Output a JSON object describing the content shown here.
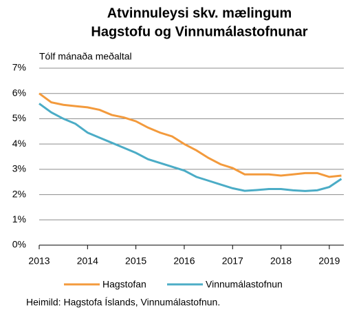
{
  "chart_data": {
    "type": "line",
    "title": [
      "Atvinnuleysi skv. mælingum",
      "Hagstofu og Vinnumálastofnunar"
    ],
    "subtitle": "Tólf mánaða meðaltal",
    "source": "Heimild: Hagstofa Íslands, Vinnumálastofnun.",
    "x": [
      2013,
      2013.25,
      2013.5,
      2013.75,
      2014,
      2014.25,
      2014.5,
      2014.75,
      2015,
      2015.25,
      2015.5,
      2015.75,
      2016,
      2016.25,
      2016.5,
      2016.75,
      2017,
      2017.25,
      2017.5,
      2017.75,
      2018,
      2018.25,
      2018.5,
      2018.75,
      2019,
      2019.25
    ],
    "series": [
      {
        "name": "Hagstofan",
        "color": "#f39a3c",
        "values": [
          6.0,
          5.65,
          5.55,
          5.5,
          5.45,
          5.35,
          5.15,
          5.05,
          4.9,
          4.65,
          4.45,
          4.3,
          4.0,
          3.75,
          3.45,
          3.2,
          3.05,
          2.8,
          2.8,
          2.8,
          2.75,
          2.8,
          2.85,
          2.85,
          2.7,
          2.75
        ]
      },
      {
        "name": "Vinnumálastofnun",
        "color": "#4bacc6",
        "values": [
          5.6,
          5.25,
          5.0,
          4.8,
          4.45,
          4.25,
          4.05,
          3.85,
          3.65,
          3.4,
          3.25,
          3.1,
          2.95,
          2.7,
          2.55,
          2.4,
          2.25,
          2.15,
          2.18,
          2.22,
          2.22,
          2.17,
          2.14,
          2.17,
          2.3,
          2.62
        ]
      }
    ],
    "xlim": [
      2013,
      2019.3
    ],
    "xticks": [
      2013,
      2014,
      2015,
      2016,
      2017,
      2018,
      2019
    ],
    "ylim": [
      0,
      7
    ],
    "yticks": [
      {
        "value": 0,
        "label": "0%"
      },
      {
        "value": 1,
        "label": "1%"
      },
      {
        "value": 2,
        "label": "2%"
      },
      {
        "value": 3,
        "label": "3%"
      },
      {
        "value": 4,
        "label": "4%"
      },
      {
        "value": 5,
        "label": "5%"
      },
      {
        "value": 6,
        "label": "6%"
      },
      {
        "value": 7,
        "label": "7%"
      }
    ],
    "grid": true
  }
}
